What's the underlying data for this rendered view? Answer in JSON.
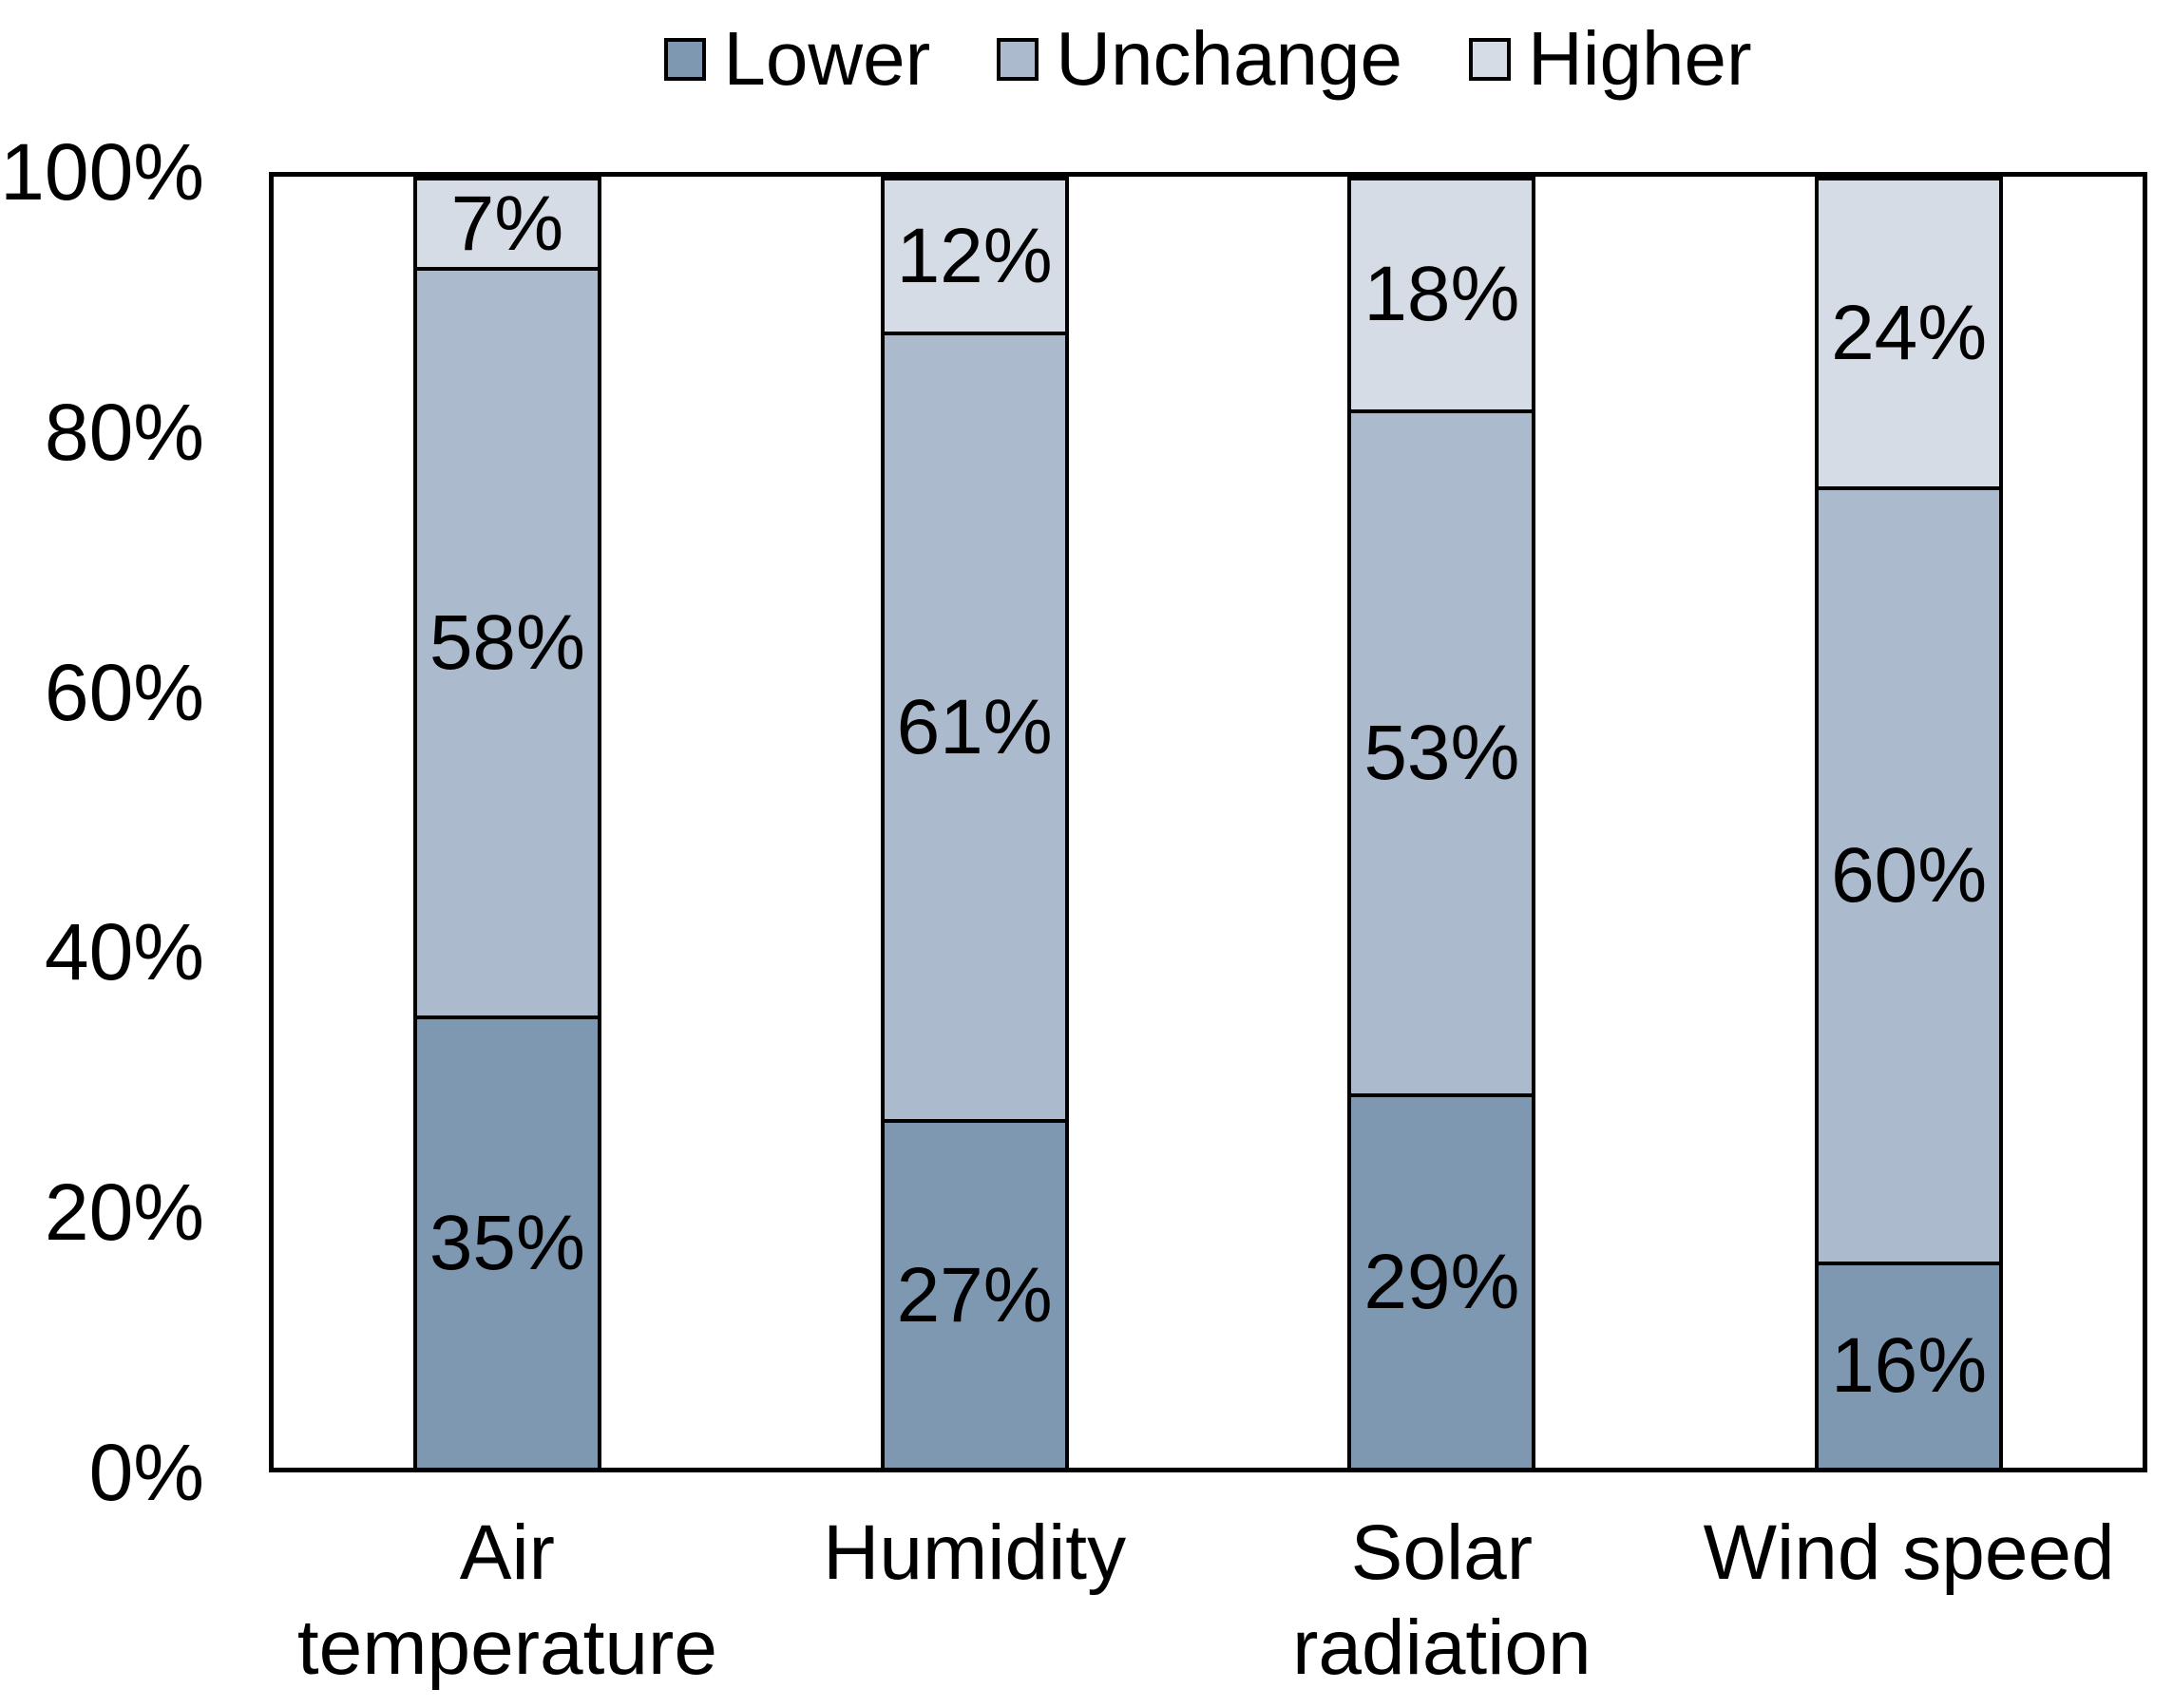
{
  "chart_data": {
    "type": "bar",
    "variant": "stacked-100-percent-column",
    "title": "",
    "categories": [
      "Air temperature",
      "Humidity",
      "Solar radiation",
      "Wind speed"
    ],
    "category_label_lines": [
      [
        "Air",
        "temperature"
      ],
      [
        "Humidity"
      ],
      [
        "Solar",
        "radiation"
      ],
      [
        "Wind speed"
      ]
    ],
    "series": [
      {
        "name": "Lower",
        "color": "#7E98B2",
        "values": [
          35,
          27,
          29,
          16
        ],
        "labels": [
          "35%",
          "27%",
          "29%",
          "16%"
        ]
      },
      {
        "name": "Unchange",
        "color": "#ABBACD",
        "values": [
          58,
          61,
          53,
          60
        ],
        "labels": [
          "58%",
          "61%",
          "53%",
          "60%"
        ]
      },
      {
        "name": "Higher",
        "color": "#D6DCE6",
        "values": [
          7,
          12,
          18,
          24
        ],
        "labels": [
          "7%",
          "12%",
          "18%",
          "24%"
        ]
      }
    ],
    "value_suffix": "%",
    "y_axis": {
      "min": 0,
      "max": 100,
      "tick_step": 20,
      "tick_labels": [
        "0%",
        "20%",
        "40%",
        "60%",
        "80%",
        "100%"
      ],
      "gridlines": false
    },
    "legend": {
      "position": "top",
      "items": [
        "Lower",
        "Unchange",
        "Higher"
      ]
    },
    "styles": {
      "plot_border_color": "#000000",
      "bar_border_color": "#000000",
      "text_color": "#000000",
      "background_color": "#FFFFFF"
    }
  }
}
